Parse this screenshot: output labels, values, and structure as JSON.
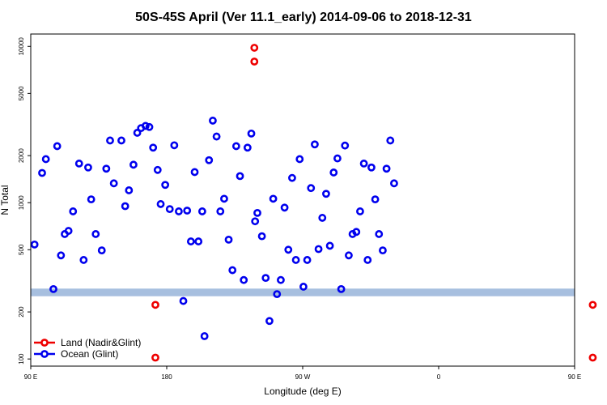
{
  "chart_data": {
    "type": "scatter",
    "title": "50S-45S April (Ver 11.1_early)   2014-09-06 to 2018-12-31",
    "xlabel": "Longitude (deg E)",
    "ylabel": "N Total",
    "xlim": [
      90,
      450
    ],
    "ylim": [
      90,
      12000
    ],
    "yscale": "log",
    "x_ticks": [
      {
        "value": 90,
        "label": "90 E"
      },
      {
        "value": 180,
        "label": "180"
      },
      {
        "value": 270,
        "label": "90 W"
      },
      {
        "value": 360,
        "label": "0"
      },
      {
        "value": 450,
        "label": "90 E"
      },
      {
        "value": 540,
        "label": "180"
      }
    ],
    "y_ticks": [
      {
        "value": 100,
        "label": "100"
      },
      {
        "value": 200,
        "label": "200"
      },
      {
        "value": 500,
        "label": "500"
      },
      {
        "value": 1000,
        "label": "1000"
      },
      {
        "value": 2000,
        "label": "2000"
      },
      {
        "value": 5000,
        "label": "5000"
      },
      {
        "value": 10000,
        "label": "10000"
      }
    ],
    "band": {
      "y_low": 252,
      "y_high": 282,
      "color": "#a7bfdf"
    },
    "legend_position": "bottom-left",
    "series": [
      {
        "name": "Land (Nadir&Glint)",
        "color": "#ee0000",
        "points": [
          [
            172.5,
            102
          ],
          [
            172.5,
            222
          ],
          [
            238,
            8000
          ],
          [
            238,
            9800
          ],
          [
            462,
            102
          ],
          [
            462,
            222
          ]
        ]
      },
      {
        "name": "Ocean (Glint)",
        "color": "#0000ee",
        "points": [
          [
            92.5,
            540
          ],
          [
            97.5,
            1550
          ],
          [
            100,
            1900
          ],
          [
            105,
            280
          ],
          [
            107.5,
            2300
          ],
          [
            110,
            460
          ],
          [
            112.5,
            630
          ],
          [
            115,
            660
          ],
          [
            118,
            880
          ],
          [
            122,
            1780
          ],
          [
            125,
            430
          ],
          [
            128,
            1680
          ],
          [
            130,
            1050
          ],
          [
            133,
            630
          ],
          [
            137,
            495
          ],
          [
            140,
            1650
          ],
          [
            142.5,
            2500
          ],
          [
            145,
            1330
          ],
          [
            150,
            2500
          ],
          [
            152.5,
            950
          ],
          [
            155,
            1200
          ],
          [
            158,
            1750
          ],
          [
            160.5,
            2800
          ],
          [
            163,
            3000
          ],
          [
            166,
            3100
          ],
          [
            168.5,
            3050
          ],
          [
            171,
            2250
          ],
          [
            174,
            1620
          ],
          [
            176,
            980
          ],
          [
            179,
            1300
          ],
          [
            182,
            910
          ],
          [
            185,
            2330
          ],
          [
            188,
            880
          ],
          [
            191,
            235
          ],
          [
            193.5,
            890
          ],
          [
            196,
            565
          ],
          [
            198.5,
            1570
          ],
          [
            201,
            565
          ],
          [
            203.5,
            880
          ],
          [
            205,
            140
          ],
          [
            208,
            1870
          ],
          [
            210.5,
            3350
          ],
          [
            213,
            2650
          ],
          [
            215.5,
            880
          ],
          [
            218,
            1060
          ],
          [
            221,
            580
          ],
          [
            223.5,
            370
          ],
          [
            226,
            2300
          ],
          [
            228.5,
            1480
          ],
          [
            231,
            320
          ],
          [
            233.5,
            2250
          ],
          [
            236,
            2770
          ],
          [
            238.5,
            760
          ],
          [
            240,
            860
          ],
          [
            243,
            610
          ],
          [
            245.5,
            330
          ],
          [
            248,
            175
          ],
          [
            250.5,
            1060
          ],
          [
            253,
            260
          ],
          [
            255.5,
            320
          ],
          [
            258,
            930
          ],
          [
            260.5,
            500
          ],
          [
            263,
            1440
          ],
          [
            265.5,
            430
          ],
          [
            268,
            1900
          ],
          [
            270.5,
            290
          ],
          [
            273,
            430
          ],
          [
            275.5,
            1240
          ],
          [
            278,
            2360
          ],
          [
            280.5,
            505
          ],
          [
            283,
            800
          ],
          [
            285.5,
            1140
          ],
          [
            288,
            530
          ],
          [
            290.5,
            1560
          ],
          [
            293,
            1920
          ],
          [
            295.5,
            280
          ],
          [
            298,
            2320
          ],
          [
            300.5,
            460
          ],
          [
            303,
            630
          ],
          [
            305.5,
            650
          ],
          [
            308,
            880
          ],
          [
            310.5,
            1780
          ],
          [
            313,
            430
          ],
          [
            315.5,
            1680
          ],
          [
            318,
            1050
          ],
          [
            320.5,
            630
          ],
          [
            323,
            495
          ],
          [
            325.5,
            1650
          ],
          [
            328,
            2500
          ],
          [
            330.5,
            1330
          ]
        ]
      }
    ]
  }
}
